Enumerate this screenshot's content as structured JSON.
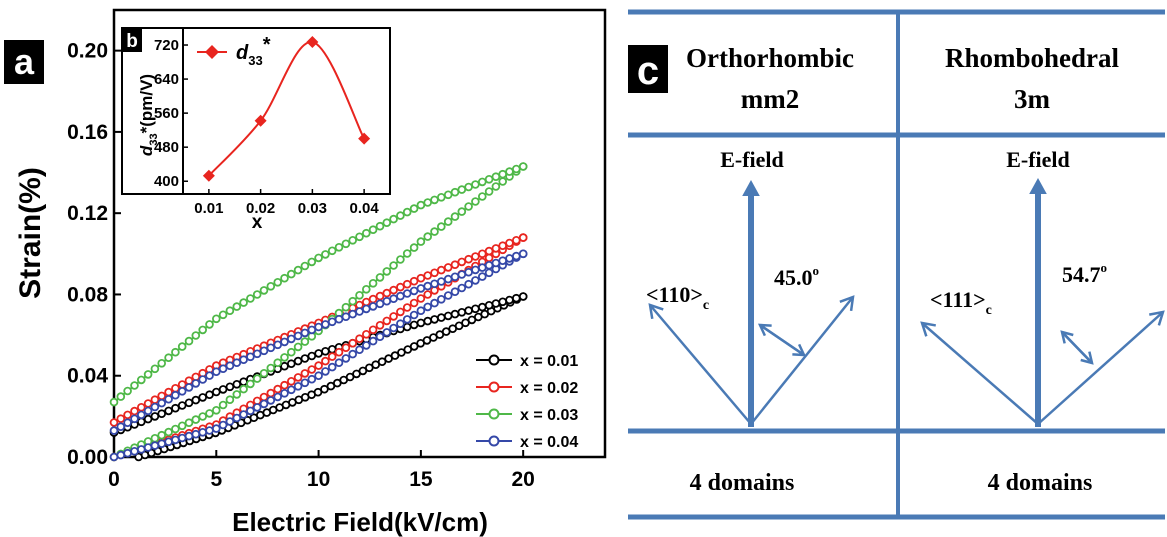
{
  "chart_data": [
    {
      "panel_label": "a",
      "type": "line",
      "xlabel": "Electric Field(kV/cm)",
      "ylabel": "Strain(%)",
      "xlim": [
        0,
        24
      ],
      "ylim": [
        0,
        0.22
      ],
      "xticks": [
        "0",
        "5",
        "10",
        "15",
        "20"
      ],
      "yticks": [
        "0.00",
        "0.04",
        "0.08",
        "0.12",
        "0.16",
        "0.20"
      ],
      "legend_position": "lower-right",
      "series": [
        {
          "name": "x = 0.01",
          "color": "#000000",
          "max_field": 20,
          "start_field": 1.2,
          "upper": {
            "x": [
              0,
              5,
              10,
              15,
              20
            ],
            "y": [
              0.012,
              0.032,
              0.051,
              0.066,
              0.079
            ]
          },
          "lower": {
            "x": [
              1.2,
              5,
              10,
              15,
              20
            ],
            "y": [
              0.0,
              0.012,
              0.032,
              0.056,
              0.079
            ]
          }
        },
        {
          "name": "x = 0.02",
          "color": "#e8251f",
          "max_field": 20,
          "start_field": 0,
          "upper": {
            "x": [
              0,
              5,
              10,
              15,
              20
            ],
            "y": [
              0.017,
              0.045,
              0.066,
              0.088,
              0.108
            ]
          },
          "lower": {
            "x": [
              0,
              5,
              10,
              15,
              20
            ],
            "y": [
              0.0,
              0.016,
              0.045,
              0.078,
              0.108
            ]
          }
        },
        {
          "name": "x = 0.03",
          "color": "#4fb848",
          "max_field": 20,
          "start_field": 0,
          "upper": {
            "x": [
              0,
              5,
              10,
              15,
              20
            ],
            "y": [
              0.027,
              0.068,
              0.098,
              0.124,
              0.143
            ]
          },
          "lower": {
            "x": [
              0,
              5,
              10,
              15,
              20
            ],
            "y": [
              0.0,
              0.023,
              0.062,
              0.106,
              0.143
            ]
          }
        },
        {
          "name": "x = 0.04",
          "color": "#3548a8",
          "max_field": 20,
          "start_field": 0,
          "upper": {
            "x": [
              0,
              5,
              10,
              15,
              20
            ],
            "y": [
              0.013,
              0.042,
              0.064,
              0.083,
              0.1
            ]
          },
          "lower": {
            "x": [
              0,
              5,
              10,
              15,
              20
            ],
            "y": [
              0.0,
              0.014,
              0.04,
              0.072,
              0.1
            ]
          }
        }
      ]
    },
    {
      "panel_label": "b",
      "type": "line",
      "series_name": "d33*",
      "xlabel": "x",
      "ylabel": "d33*(pm/V)",
      "xlim": [
        0.005,
        0.045
      ],
      "ylim": [
        370,
        760
      ],
      "xticks": [
        "0.01",
        "0.02",
        "0.03",
        "0.04"
      ],
      "yticks": [
        "400",
        "480",
        "560",
        "640",
        "720"
      ],
      "x": [
        0.01,
        0.02,
        0.03,
        0.04
      ],
      "y": [
        413,
        542,
        727,
        500
      ],
      "color": "#e8251f",
      "legend_position": "top-left"
    }
  ],
  "panel_c": {
    "label": "c",
    "columns": [
      {
        "name": "Orthorhombic",
        "symmetry": "mm2",
        "field_label": "E-field",
        "direction": "<110>",
        "direction_sub": "c",
        "angle": "45.0",
        "angle_sup": "o",
        "domains": "4 domains"
      },
      {
        "name": "Rhombohedral",
        "symmetry": "3m",
        "field_label": "E-field",
        "direction": "<111>",
        "direction_sub": "c",
        "angle": "54.7",
        "angle_sup": "o",
        "domains": "4 domains"
      }
    ],
    "line_color": "#4a7ab5"
  },
  "legend_entries": [
    "x = 0.01",
    "x = 0.02",
    "x = 0.03",
    "x = 0.04"
  ],
  "inset_legend": {
    "symbol": "d",
    "sub": "33",
    "sup": "*"
  },
  "inset_ylabel": {
    "symbol": "d",
    "sub": "33",
    "rest": "*(pm/V)"
  }
}
